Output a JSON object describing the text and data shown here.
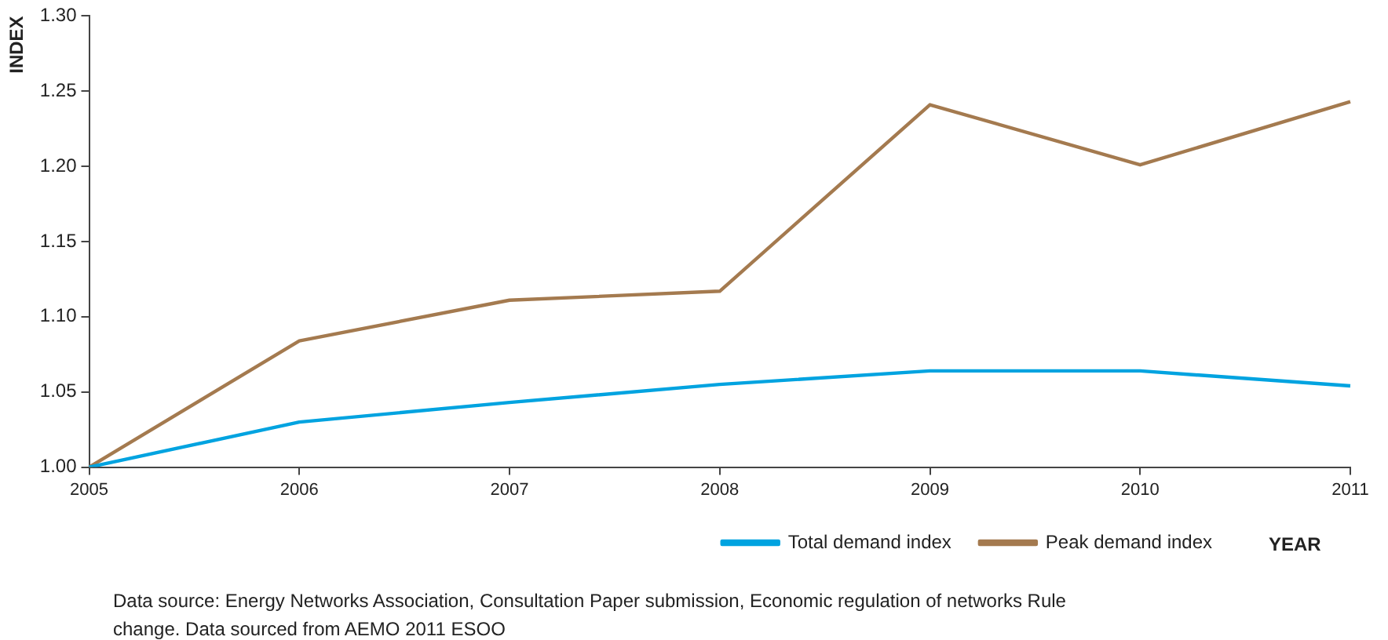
{
  "chart_data": {
    "type": "line",
    "xlabel": "YEAR",
    "ylabel": "INDEX",
    "categories": [
      "2005",
      "2006",
      "2007",
      "2008",
      "2009",
      "2010",
      "2011"
    ],
    "series": [
      {
        "name": "Total demand index",
        "color": "#00a3e0",
        "values": [
          1.0,
          1.03,
          1.043,
          1.055,
          1.064,
          1.064,
          1.054
        ]
      },
      {
        "name": "Peak demand index",
        "color": "#a47a4f",
        "values": [
          1.0,
          1.084,
          1.111,
          1.117,
          1.241,
          1.201,
          1.243
        ]
      }
    ],
    "ylim": [
      1.0,
      1.3
    ],
    "yticks": [
      {
        "value": 1.0,
        "label": "1.00"
      },
      {
        "value": 1.05,
        "label": "1.05"
      },
      {
        "value": 1.1,
        "label": "1.10"
      },
      {
        "value": 1.15,
        "label": "1.15"
      },
      {
        "value": 1.2,
        "label": "1.20"
      },
      {
        "value": 1.25,
        "label": "1.25"
      },
      {
        "value": 1.3,
        "label": "1.30"
      }
    ],
    "grid": false,
    "legend": "bottom right",
    "marker": "none",
    "line_style": "solid",
    "annotations": [
      "Data source: Energy Networks Association, Consultation Paper submission, Economic regulation of networks Rule change. Data sourced from AEMO 2011 ESOO"
    ]
  }
}
